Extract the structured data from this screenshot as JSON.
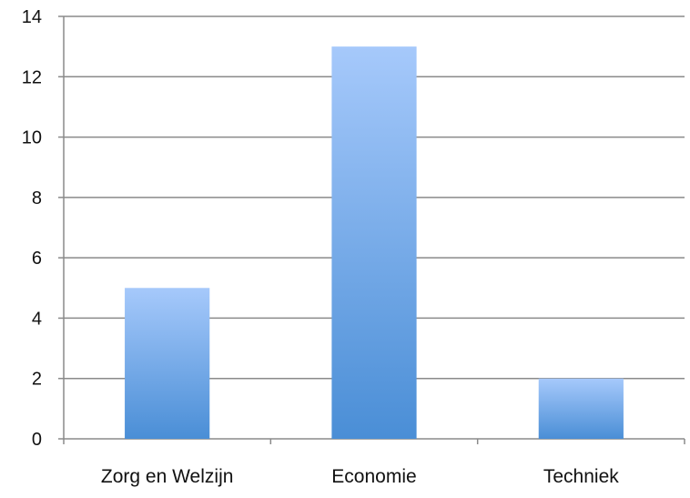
{
  "chart_data": {
    "type": "bar",
    "title": "",
    "xlabel": "",
    "ylabel": "",
    "categories": [
      "Zorg en Welzijn",
      "Economie",
      "Techniek"
    ],
    "values": [
      5,
      13,
      2
    ],
    "ylim": [
      0,
      14
    ],
    "yticks": [
      0,
      2,
      4,
      6,
      8,
      10,
      12,
      14
    ],
    "grid": true,
    "legend": "none",
    "colors": {
      "bar_top": "#a6c9fb",
      "bar_bottom": "#4a8ed6",
      "grid": "#8a8a8a",
      "axis": "#8a8a8a"
    }
  }
}
